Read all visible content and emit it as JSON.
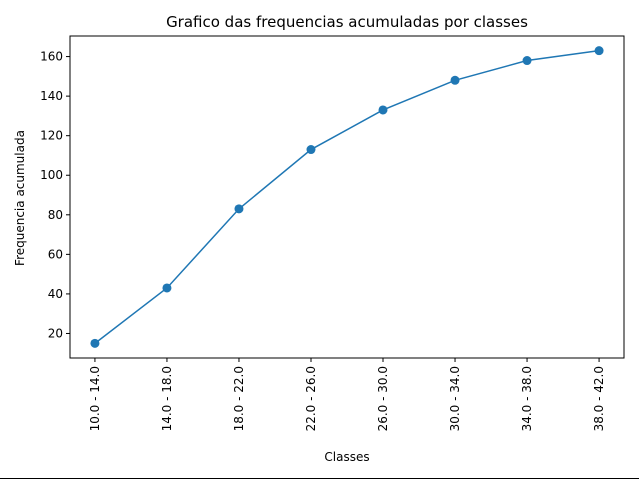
{
  "chart_data": {
    "type": "line",
    "title": "Grafico das frequencias acumuladas por classes",
    "xlabel": "Classes",
    "ylabel": "Frequencia acumulada",
    "categories": [
      "10.0 - 14.0",
      "14.0 - 18.0",
      "18.0 - 22.0",
      "22.0 - 26.0",
      "26.0 - 30.0",
      "30.0 - 34.0",
      "34.0 - 38.0",
      "38.0 - 42.0"
    ],
    "values": [
      15,
      43,
      83,
      113,
      133,
      148,
      158,
      163
    ],
    "ylim": [
      7.6,
      170.4
    ],
    "yticks": [
      20,
      40,
      60,
      80,
      100,
      120,
      140,
      160
    ],
    "grid": false,
    "line_color": "#1f77b4",
    "marker": "circle"
  }
}
